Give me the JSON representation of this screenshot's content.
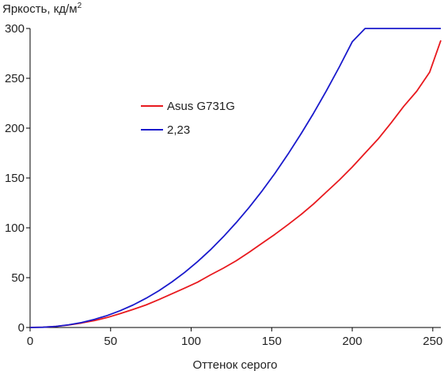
{
  "chart_data": {
    "type": "line",
    "title": "",
    "ylabel": "Яркость, кд/м",
    "ylabel_sup": "2",
    "xlabel": "Оттенок серого",
    "xlim": [
      0,
      255
    ],
    "ylim": [
      0,
      300
    ],
    "x_ticks": [
      "0",
      "50",
      "100",
      "150",
      "200",
      "250"
    ],
    "y_ticks": [
      "0",
      "50",
      "100",
      "150",
      "200",
      "250",
      "300"
    ],
    "grid": false,
    "legend_position": "upper-left-center",
    "series": [
      {
        "name": "Asus G731G",
        "color": "#e8191e",
        "x": [
          0,
          8,
          16,
          24,
          32,
          40,
          48,
          56,
          64,
          72,
          80,
          88,
          96,
          104,
          112,
          120,
          128,
          136,
          144,
          152,
          160,
          168,
          176,
          184,
          192,
          200,
          208,
          216,
          224,
          232,
          240,
          248,
          255
        ],
        "y": [
          0.1,
          0.3,
          1.1,
          2.5,
          4.5,
          6.9,
          10.1,
          14.0,
          18.2,
          22.6,
          28.0,
          33.8,
          39.5,
          45.5,
          52.8,
          59.5,
          67.0,
          75.5,
          84.5,
          93.5,
          103,
          113,
          124,
          136,
          148,
          161,
          175,
          189,
          205,
          222,
          237,
          256,
          288
        ]
      },
      {
        "name": "2,23",
        "color": "#1a1acc",
        "x": [
          0,
          8,
          16,
          24,
          32,
          40,
          48,
          56,
          64,
          72,
          80,
          88,
          96,
          104,
          112,
          120,
          128,
          136,
          144,
          152,
          160,
          168,
          176,
          184,
          192,
          200,
          208,
          216,
          224,
          232,
          240,
          248,
          255
        ],
        "y": [
          0,
          0.2,
          1.1,
          2.7,
          5.0,
          8.2,
          12.1,
          16.9,
          22.6,
          29.3,
          36.9,
          45.6,
          55.3,
          66.1,
          78.0,
          91.0,
          105.2,
          120.5,
          137.0,
          154.7,
          173.6,
          193.7,
          215.0,
          237.6,
          261.5,
          286.7,
          300,
          300,
          300,
          300,
          300,
          300,
          300
        ]
      }
    ]
  }
}
